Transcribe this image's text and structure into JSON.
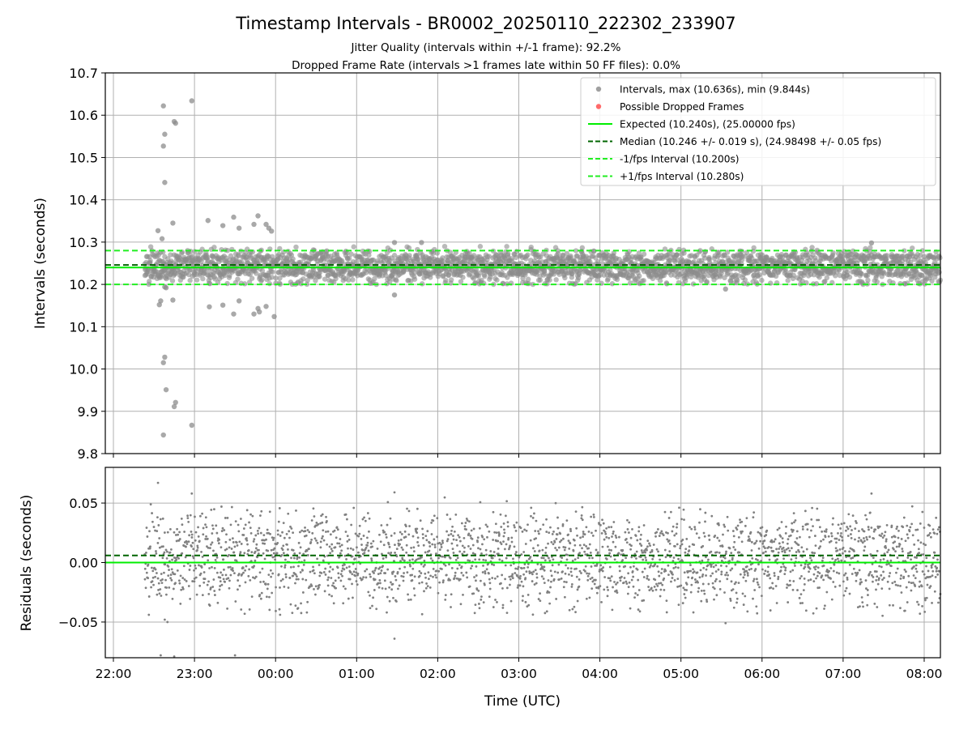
{
  "title": "Timestamp Intervals - BR0002_20250110_222302_233907",
  "subtitle_1": "Jitter Quality (intervals within +/-1 frame): 92.2%",
  "subtitle_2": "Dropped Frame Rate (intervals >1 frames late within 50 FF files): 0.0%",
  "colors": {
    "points": "#808080",
    "dropped": "#ff5a5a",
    "expected": "#00ee00",
    "median": "#006400",
    "bounds": "#22ee22",
    "grid": "#b0b0b0"
  },
  "chart_data": [
    {
      "type": "scatter",
      "panel": "intervals",
      "ylabel": "Intervals (seconds)",
      "ylim": [
        9.8,
        10.7
      ],
      "yticks": [
        "9.8",
        "9.9",
        "10.0",
        "10.1",
        "10.2",
        "10.3",
        "10.4",
        "10.5",
        "10.6",
        "10.7"
      ],
      "xlim": [
        "21:54",
        "08:12"
      ],
      "grid": true,
      "legend_position": "top-right",
      "legend": [
        {
          "label": "Intervals, max (10.636s), min (9.844s)",
          "kind": "dot",
          "color": "#a0a0a0"
        },
        {
          "label": "Possible Dropped Frames",
          "kind": "dot",
          "color": "#ff6a6a"
        },
        {
          "label": "Expected (10.240s), (25.00000 fps)",
          "kind": "solid",
          "color": "#00ee00"
        },
        {
          "label": "Median (10.246 +/- 0.019 s), (24.98498 +/- 0.05 fps)",
          "kind": "dashed",
          "color": "#006400"
        },
        {
          "label": "-1/fps Interval (10.200s)",
          "kind": "dashed",
          "color": "#22ee22"
        },
        {
          "label": "+1/fps Interval (10.280s)",
          "kind": "dashed",
          "color": "#22ee22"
        }
      ],
      "reference_lines": [
        {
          "name": "Expected",
          "y": 10.24,
          "style": "solid"
        },
        {
          "name": "Median",
          "y": 10.246,
          "style": "dashed"
        },
        {
          "name": "-1/fps Interval",
          "y": 10.2,
          "style": "dashed"
        },
        {
          "name": "+1/fps Interval",
          "y": 10.28,
          "style": "dashed"
        }
      ],
      "data_range": {
        "start": "22:23",
        "end": "08:12",
        "typical_min": 10.2,
        "typical_max": 10.29
      },
      "outliers": [
        {
          "x": "22:33",
          "y": 10.327
        },
        {
          "x": "22:34",
          "y": 10.152
        },
        {
          "x": "22:35",
          "y": 10.161
        },
        {
          "x": "22:36",
          "y": 10.308
        },
        {
          "x": "22:37",
          "y": 10.622
        },
        {
          "x": "22:37",
          "y": 10.527
        },
        {
          "x": "22:38",
          "y": 10.555
        },
        {
          "x": "22:38",
          "y": 10.441
        },
        {
          "x": "22:38",
          "y": 10.194
        },
        {
          "x": "22:38",
          "y": 10.028
        },
        {
          "x": "22:37",
          "y": 10.015
        },
        {
          "x": "22:37",
          "y": 9.844
        },
        {
          "x": "22:39",
          "y": 9.951
        },
        {
          "x": "22:39",
          "y": 10.192
        },
        {
          "x": "22:44",
          "y": 10.345
        },
        {
          "x": "22:44",
          "y": 10.163
        },
        {
          "x": "22:45",
          "y": 10.585
        },
        {
          "x": "22:46",
          "y": 10.581
        },
        {
          "x": "22:45",
          "y": 9.911
        },
        {
          "x": "22:46",
          "y": 9.921
        },
        {
          "x": "22:58",
          "y": 10.634
        },
        {
          "x": "22:58",
          "y": 9.867
        },
        {
          "x": "23:10",
          "y": 10.351
        },
        {
          "x": "23:11",
          "y": 10.147
        },
        {
          "x": "23:21",
          "y": 10.339
        },
        {
          "x": "23:21",
          "y": 10.151
        },
        {
          "x": "23:29",
          "y": 10.359
        },
        {
          "x": "23:29",
          "y": 10.13
        },
        {
          "x": "23:33",
          "y": 10.333
        },
        {
          "x": "23:33",
          "y": 10.161
        },
        {
          "x": "23:44",
          "y": 10.342
        },
        {
          "x": "23:44",
          "y": 10.13
        },
        {
          "x": "23:47",
          "y": 10.362
        },
        {
          "x": "23:47",
          "y": 10.143
        },
        {
          "x": "23:48",
          "y": 10.135
        },
        {
          "x": "23:53",
          "y": 10.342
        },
        {
          "x": "23:53",
          "y": 10.148
        },
        {
          "x": "23:55",
          "y": 10.333
        },
        {
          "x": "23:57",
          "y": 10.326
        },
        {
          "x": "23:59",
          "y": 10.124
        },
        {
          "x": "01:28",
          "y": 10.299
        },
        {
          "x": "01:28",
          "y": 10.175
        },
        {
          "x": "01:48",
          "y": 10.299
        },
        {
          "x": "05:33",
          "y": 10.189
        },
        {
          "x": "07:21",
          "y": 10.298
        }
      ]
    },
    {
      "type": "scatter",
      "panel": "residuals",
      "ylabel": "Residuals (seconds)",
      "xlabel": "Time (UTC)",
      "ylim": [
        -0.08,
        0.08
      ],
      "yticks": [
        "−0.05",
        "0.00",
        "0.05"
      ],
      "xticks": [
        "22:00",
        "23:00",
        "00:00",
        "01:00",
        "02:00",
        "03:00",
        "04:00",
        "05:00",
        "06:00",
        "07:00",
        "08:00"
      ],
      "grid": true,
      "reference_lines": [
        {
          "name": "Expected",
          "y": 0.0,
          "style": "solid"
        },
        {
          "name": "Median",
          "y": 0.006,
          "style": "dashed"
        }
      ],
      "data_range": {
        "start": "22:23",
        "end": "08:12",
        "typical_min": -0.04,
        "typical_max": 0.05
      },
      "outliers": [
        {
          "x": "22:33",
          "y": 0.067
        },
        {
          "x": "22:35",
          "y": -0.078
        },
        {
          "x": "22:38",
          "y": -0.048
        },
        {
          "x": "22:40",
          "y": -0.05
        },
        {
          "x": "22:45",
          "y": -0.079
        },
        {
          "x": "23:30",
          "y": -0.078
        },
        {
          "x": "22:58",
          "y": 0.058
        },
        {
          "x": "01:28",
          "y": -0.064
        },
        {
          "x": "01:28",
          "y": 0.059
        },
        {
          "x": "05:33",
          "y": -0.051
        },
        {
          "x": "07:21",
          "y": 0.058
        }
      ]
    }
  ]
}
